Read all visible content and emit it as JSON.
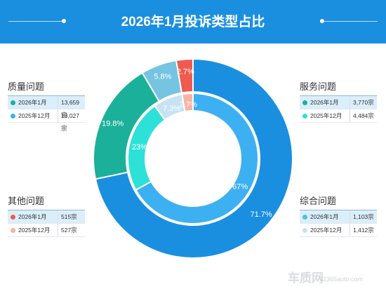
{
  "header": {
    "title": "2026年1月投诉类型占比"
  },
  "chart_data": {
    "type": "pie",
    "title": "2026年1月投诉类型占比",
    "categories": [
      "综合问题",
      "质量问题",
      "服务问题",
      "其他问题"
    ],
    "series": [
      {
        "name": "2026年1月",
        "ring": "outer",
        "values": [
          71.7,
          19.8,
          5.8,
          2.7
        ],
        "labels": [
          "71.7%",
          "19.8%",
          "5.8%",
          "2.7%"
        ]
      },
      {
        "name": "2025年12月",
        "ring": "inner",
        "values": [
          67,
          23,
          7.3,
          2.7
        ],
        "labels": [
          "67%",
          "23%",
          "7.3%",
          "2.7%"
        ]
      }
    ],
    "colors": {
      "outer": [
        "#1a8fe0",
        "#1bb09a",
        "#74c4e2",
        "#ef5b4f"
      ],
      "inner": [
        "#3db0f2",
        "#2ee1d8",
        "#c7e3f2",
        "#f5b3a3"
      ]
    },
    "legend_position": "around"
  },
  "legend_groups": [
    {
      "title": "质量问题",
      "rows": [
        {
          "period": "2026年1月",
          "value": "13,659宗",
          "color": "#1bb09a"
        },
        {
          "period": "2025年12月",
          "value": "13,027宗",
          "color": "#3db0f2"
        }
      ]
    },
    {
      "title": "服务问题",
      "rows": [
        {
          "period": "2026年1月",
          "value": "3,770宗",
          "color": "#1bb09a"
        },
        {
          "period": "2025年12月",
          "value": "4,484宗",
          "color": "#2ee1d8"
        }
      ]
    },
    {
      "title": "其他问题",
      "rows": [
        {
          "period": "2026年1月",
          "value": "515宗",
          "color": "#ef5b4f"
        },
        {
          "period": "2025年12月",
          "value": "527宗",
          "color": "#f5b3a3"
        }
      ]
    },
    {
      "title": "综合问题",
      "rows": [
        {
          "period": "2026年1月",
          "value": "1,103宗",
          "color": "#4fc1dc"
        },
        {
          "period": "2025年12月",
          "value": "1,412宗",
          "color": "#c7e3f2"
        }
      ]
    }
  ],
  "footer": {
    "logo": "车质网",
    "url": "12365auto.com"
  }
}
